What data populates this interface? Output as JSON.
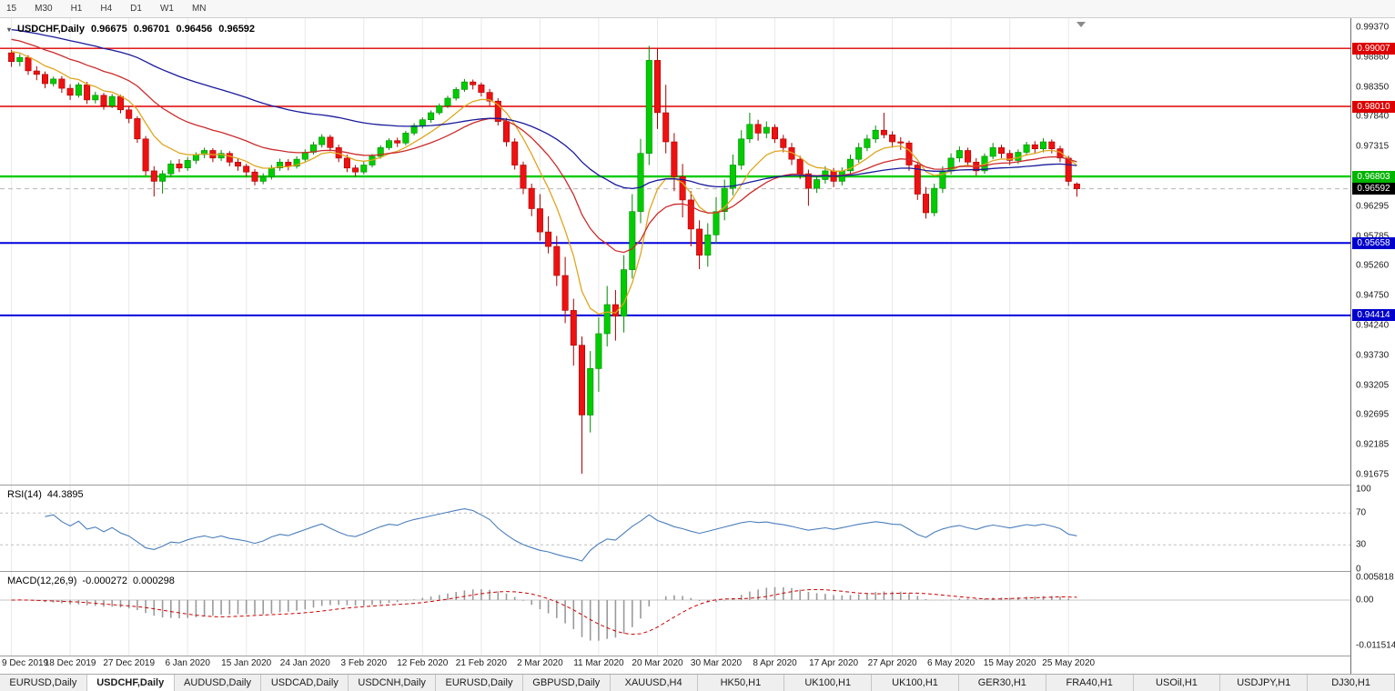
{
  "toolbar": {
    "timeframes": [
      "15",
      "M30",
      "H1",
      "H4",
      "D1",
      "W1",
      "MN"
    ]
  },
  "chart_title": {
    "collapse_icon": "▾",
    "symbol": "USDCHF,Daily",
    "open": "0.96675",
    "high": "0.96701",
    "low": "0.96456",
    "close": "0.96592"
  },
  "indicators": {
    "rsi": {
      "label": "RSI(14)",
      "value": "44.3895",
      "color": "#4a7ebc",
      "levels": [
        70,
        30
      ]
    },
    "macd": {
      "label": "MACD(12,26,9)",
      "value": "-0.000272",
      "signal_value": "0.000298",
      "hist_color": "#9a9a9a",
      "signal_color": "#cc0000"
    }
  },
  "axes": {
    "price_ticks": [
      "0.99370",
      "0.98860",
      "0.98350",
      "0.97840",
      "0.97315",
      "0.96805",
      "0.96295",
      "0.95785",
      "0.95260",
      "0.94750",
      "0.94240",
      "0.93730",
      "0.93205",
      "0.92695",
      "0.92185",
      "0.91675"
    ],
    "rsi_ticks": [
      {
        "label": "100",
        "value": 100
      },
      {
        "label": "70",
        "value": 70
      },
      {
        "label": "30",
        "value": 30
      },
      {
        "label": "0",
        "value": 0
      }
    ],
    "macd_ticks": [
      {
        "label": "0.005818",
        "value": 0.005818
      },
      {
        "label": "0.00",
        "value": 0
      },
      {
        "label": "-0.011514",
        "value": -0.011514
      }
    ],
    "dates": [
      "9 Dec 2019",
      "18 Dec 2019",
      "27 Dec 2019",
      "6 Jan 2020",
      "15 Jan 2020",
      "24 Jan 2020",
      "3 Feb 2020",
      "12 Feb 2020",
      "21 Feb 2020",
      "2 Mar 2020",
      "11 Mar 2020",
      "20 Mar 2020",
      "30 Mar 2020",
      "8 Apr 2020",
      "17 Apr 2020",
      "27 Apr 2020",
      "6 May 2020",
      "15 May 2020",
      "25 May 2020"
    ]
  },
  "levels": [
    {
      "price": 0.99007,
      "label": "0.99007",
      "line_color": "#dd0000",
      "badge_color": "#dd0000",
      "dash": false,
      "width": 1.4
    },
    {
      "price": 0.9801,
      "label": "0.98010",
      "line_color": "#dd0000",
      "badge_color": "#dd0000",
      "dash": false,
      "width": 1.4
    },
    {
      "price": 0.96803,
      "label": "0.96803",
      "line_color": "#00cc00",
      "badge_color": "#00b400",
      "dash": false,
      "width": 2.4
    },
    {
      "price": 0.96592,
      "label": "0.96592",
      "line_color": "#b8b8b8",
      "badge_color": "#000000",
      "dash": true,
      "width": 1
    },
    {
      "price": 0.95658,
      "label": "0.95658",
      "line_color": "#0000dd",
      "badge_color": "#0000cc",
      "dash": false,
      "width": 2
    },
    {
      "price": 0.94414,
      "label": "0.94414",
      "line_color": "#0000dd",
      "badge_color": "#0000cc",
      "dash": false,
      "width": 2
    }
  ],
  "chart_data": {
    "type": "candlestick",
    "symbol": "USDCHF",
    "timeframe": "Daily",
    "ohlc_last": {
      "open": 0.96675,
      "high": 0.96701,
      "low": 0.96456,
      "close": 0.96592
    },
    "ylim": [
      0.91675,
      0.9937
    ],
    "grid_interval_candles": 7,
    "colors": {
      "up": "#00cc00",
      "up_border": "#008a00",
      "down": "#ee1111",
      "down_border": "#a80000",
      "grid": "#e9e9e9"
    },
    "moving_averages": [
      {
        "period": 8,
        "seed": 0.99,
        "color": "#dfa620"
      },
      {
        "period": 21,
        "seed": 0.992,
        "color": "#cc2b2b"
      },
      {
        "period": 55,
        "seed": 0.9935,
        "color": "#1a1a9c"
      }
    ],
    "rsi_period": 14,
    "macd_params": [
      12,
      26,
      9
    ],
    "candles": [
      [
        0.9893,
        0.9898,
        0.9869,
        0.9878
      ],
      [
        0.9878,
        0.9891,
        0.987,
        0.9885
      ],
      [
        0.9885,
        0.9889,
        0.9855,
        0.9862
      ],
      [
        0.9862,
        0.987,
        0.9846,
        0.9856
      ],
      [
        0.9856,
        0.9861,
        0.9832,
        0.984
      ],
      [
        0.984,
        0.9852,
        0.9835,
        0.9848
      ],
      [
        0.9848,
        0.9853,
        0.9824,
        0.9832
      ],
      [
        0.9832,
        0.9839,
        0.9812,
        0.982
      ],
      [
        0.982,
        0.9842,
        0.9816,
        0.9838
      ],
      [
        0.9838,
        0.9843,
        0.9805,
        0.9812
      ],
      [
        0.9812,
        0.9826,
        0.9806,
        0.982
      ],
      [
        0.982,
        0.9824,
        0.9795,
        0.9802
      ],
      [
        0.9802,
        0.9822,
        0.9798,
        0.9818
      ],
      [
        0.9818,
        0.9821,
        0.9789,
        0.9795
      ],
      [
        0.9795,
        0.9801,
        0.9772,
        0.978
      ],
      [
        0.978,
        0.9784,
        0.9738,
        0.9745
      ],
      [
        0.9745,
        0.975,
        0.9682,
        0.969
      ],
      [
        0.969,
        0.9698,
        0.9646,
        0.9672
      ],
      [
        0.9672,
        0.9691,
        0.9651,
        0.9685
      ],
      [
        0.9685,
        0.9708,
        0.968,
        0.9702
      ],
      [
        0.9702,
        0.971,
        0.9688,
        0.9695
      ],
      [
        0.9695,
        0.9714,
        0.969,
        0.9708
      ],
      [
        0.9708,
        0.9722,
        0.9702,
        0.9718
      ],
      [
        0.9718,
        0.973,
        0.9712,
        0.9725
      ],
      [
        0.9725,
        0.9729,
        0.9705,
        0.9712
      ],
      [
        0.9712,
        0.9726,
        0.9707,
        0.972
      ],
      [
        0.972,
        0.9724,
        0.9698,
        0.9705
      ],
      [
        0.9705,
        0.9712,
        0.969,
        0.9698
      ],
      [
        0.9698,
        0.9702,
        0.968,
        0.9688
      ],
      [
        0.9688,
        0.9693,
        0.9665,
        0.9672
      ],
      [
        0.9672,
        0.9686,
        0.9667,
        0.968
      ],
      [
        0.968,
        0.97,
        0.9675,
        0.9695
      ],
      [
        0.9695,
        0.9711,
        0.969,
        0.9705
      ],
      [
        0.9705,
        0.971,
        0.9691,
        0.9698
      ],
      [
        0.9698,
        0.9715,
        0.9694,
        0.971
      ],
      [
        0.971,
        0.9727,
        0.9706,
        0.9722
      ],
      [
        0.9722,
        0.974,
        0.9718,
        0.9735
      ],
      [
        0.9735,
        0.9753,
        0.973,
        0.9748
      ],
      [
        0.9748,
        0.9752,
        0.9724,
        0.973
      ],
      [
        0.973,
        0.9735,
        0.9705,
        0.9712
      ],
      [
        0.9712,
        0.9718,
        0.9688,
        0.9695
      ],
      [
        0.9695,
        0.97,
        0.968,
        0.9688
      ],
      [
        0.9688,
        0.9706,
        0.9684,
        0.97
      ],
      [
        0.97,
        0.9719,
        0.9696,
        0.9715
      ],
      [
        0.9715,
        0.9734,
        0.9711,
        0.973
      ],
      [
        0.973,
        0.9746,
        0.9726,
        0.9742
      ],
      [
        0.9742,
        0.9747,
        0.9731,
        0.9738
      ],
      [
        0.9738,
        0.9759,
        0.9734,
        0.9755
      ],
      [
        0.9755,
        0.9772,
        0.9751,
        0.9768
      ],
      [
        0.9768,
        0.9782,
        0.9763,
        0.9778
      ],
      [
        0.9778,
        0.9794,
        0.9773,
        0.979
      ],
      [
        0.979,
        0.9806,
        0.9786,
        0.9802
      ],
      [
        0.9802,
        0.9819,
        0.9798,
        0.9815
      ],
      [
        0.9815,
        0.9834,
        0.9811,
        0.983
      ],
      [
        0.983,
        0.9848,
        0.9826,
        0.9843
      ],
      [
        0.9843,
        0.9847,
        0.983,
        0.9838
      ],
      [
        0.9838,
        0.9842,
        0.9818,
        0.9825
      ],
      [
        0.9825,
        0.9831,
        0.9802,
        0.981
      ],
      [
        0.981,
        0.9815,
        0.9768,
        0.9775
      ],
      [
        0.9775,
        0.9781,
        0.9732,
        0.974
      ],
      [
        0.974,
        0.9746,
        0.9692,
        0.97
      ],
      [
        0.97,
        0.9706,
        0.965,
        0.966
      ],
      [
        0.966,
        0.9668,
        0.9612,
        0.9625
      ],
      [
        0.9625,
        0.965,
        0.957,
        0.9585
      ],
      [
        0.9585,
        0.9612,
        0.9548,
        0.956
      ],
      [
        0.956,
        0.9578,
        0.9492,
        0.951
      ],
      [
        0.951,
        0.9542,
        0.9428,
        0.945
      ],
      [
        0.945,
        0.947,
        0.9355,
        0.939
      ],
      [
        0.939,
        0.9405,
        0.9169,
        0.927
      ],
      [
        0.927,
        0.938,
        0.924,
        0.935
      ],
      [
        0.935,
        0.9438,
        0.931,
        0.941
      ],
      [
        0.941,
        0.9492,
        0.9388,
        0.946
      ],
      [
        0.946,
        0.9485,
        0.9398,
        0.944
      ],
      [
        0.944,
        0.9545,
        0.9412,
        0.952
      ],
      [
        0.952,
        0.965,
        0.9505,
        0.962
      ],
      [
        0.962,
        0.9745,
        0.96,
        0.972
      ],
      [
        0.972,
        0.9905,
        0.97,
        0.988
      ],
      [
        0.988,
        0.99,
        0.9762,
        0.979
      ],
      [
        0.979,
        0.9838,
        0.972,
        0.974
      ],
      [
        0.974,
        0.9755,
        0.9655,
        0.968
      ],
      [
        0.968,
        0.9702,
        0.961,
        0.964
      ],
      [
        0.964,
        0.9655,
        0.956,
        0.959
      ],
      [
        0.959,
        0.9605,
        0.9521,
        0.9545
      ],
      [
        0.9545,
        0.96,
        0.9525,
        0.958
      ],
      [
        0.958,
        0.9645,
        0.9565,
        0.962
      ],
      [
        0.962,
        0.9675,
        0.9605,
        0.966
      ],
      [
        0.966,
        0.9718,
        0.9648,
        0.97
      ],
      [
        0.97,
        0.976,
        0.9692,
        0.9745
      ],
      [
        0.9745,
        0.979,
        0.9738,
        0.977
      ],
      [
        0.977,
        0.9778,
        0.9742,
        0.9755
      ],
      [
        0.9755,
        0.9775,
        0.9746,
        0.9765
      ],
      [
        0.9765,
        0.977,
        0.9738,
        0.9745
      ],
      [
        0.9745,
        0.9752,
        0.9722,
        0.973
      ],
      [
        0.973,
        0.9738,
        0.97,
        0.971
      ],
      [
        0.971,
        0.9716,
        0.9676,
        0.9685
      ],
      [
        0.9685,
        0.9692,
        0.963,
        0.966
      ],
      [
        0.966,
        0.9682,
        0.9652,
        0.9675
      ],
      [
        0.9675,
        0.9698,
        0.9668,
        0.969
      ],
      [
        0.969,
        0.9695,
        0.9662,
        0.9672
      ],
      [
        0.9672,
        0.9696,
        0.9665,
        0.969
      ],
      [
        0.969,
        0.9718,
        0.9684,
        0.971
      ],
      [
        0.971,
        0.9738,
        0.9704,
        0.973
      ],
      [
        0.973,
        0.9752,
        0.9724,
        0.9745
      ],
      [
        0.9745,
        0.9768,
        0.9738,
        0.976
      ],
      [
        0.976,
        0.979,
        0.9746,
        0.9752
      ],
      [
        0.9752,
        0.9758,
        0.973,
        0.974
      ],
      [
        0.974,
        0.9748,
        0.9726,
        0.9738
      ],
      [
        0.9738,
        0.9742,
        0.969,
        0.97
      ],
      [
        0.97,
        0.9705,
        0.964,
        0.965
      ],
      [
        0.965,
        0.9662,
        0.9608,
        0.9618
      ],
      [
        0.9618,
        0.9668,
        0.9612,
        0.966
      ],
      [
        0.966,
        0.9698,
        0.9652,
        0.969
      ],
      [
        0.969,
        0.972,
        0.9684,
        0.9712
      ],
      [
        0.9712,
        0.9732,
        0.9705,
        0.9725
      ],
      [
        0.9725,
        0.973,
        0.9698,
        0.9705
      ],
      [
        0.9705,
        0.9712,
        0.9682,
        0.969
      ],
      [
        0.969,
        0.972,
        0.9685,
        0.9715
      ],
      [
        0.9715,
        0.9738,
        0.971,
        0.973
      ],
      [
        0.973,
        0.9735,
        0.9712,
        0.972
      ],
      [
        0.972,
        0.9726,
        0.97,
        0.9708
      ],
      [
        0.9708,
        0.9727,
        0.9702,
        0.9722
      ],
      [
        0.9722,
        0.974,
        0.9716,
        0.9735
      ],
      [
        0.9735,
        0.9741,
        0.972,
        0.9728
      ],
      [
        0.9728,
        0.9746,
        0.9722,
        0.974
      ],
      [
        0.974,
        0.9744,
        0.972,
        0.9728
      ],
      [
        0.9728,
        0.9733,
        0.9705,
        0.9712
      ],
      [
        0.9712,
        0.9716,
        0.9664,
        0.9672
      ],
      [
        0.96675,
        0.96701,
        0.96456,
        0.96592
      ]
    ]
  },
  "tabs": [
    {
      "label": "EURUSD,Daily",
      "active": false
    },
    {
      "label": "USDCHF,Daily",
      "active": true
    },
    {
      "label": "AUDUSD,Daily",
      "active": false
    },
    {
      "label": "USDCAD,Daily",
      "active": false
    },
    {
      "label": "USDCNH,Daily",
      "active": false
    },
    {
      "label": "EURUSD,Daily",
      "active": false
    },
    {
      "label": "GBPUSD,Daily",
      "active": false
    },
    {
      "label": "XAUUSD,H4",
      "active": false
    },
    {
      "label": "HK50,H1",
      "active": false
    },
    {
      "label": "UK100,H1",
      "active": false
    },
    {
      "label": "UK100,H1",
      "active": false
    },
    {
      "label": "GER30,H1",
      "active": false
    },
    {
      "label": "FRA40,H1",
      "active": false
    },
    {
      "label": "USOil,H1",
      "active": false
    },
    {
      "label": "USDJPY,H1",
      "active": false
    },
    {
      "label": "DJ30,H1",
      "active": false
    }
  ]
}
